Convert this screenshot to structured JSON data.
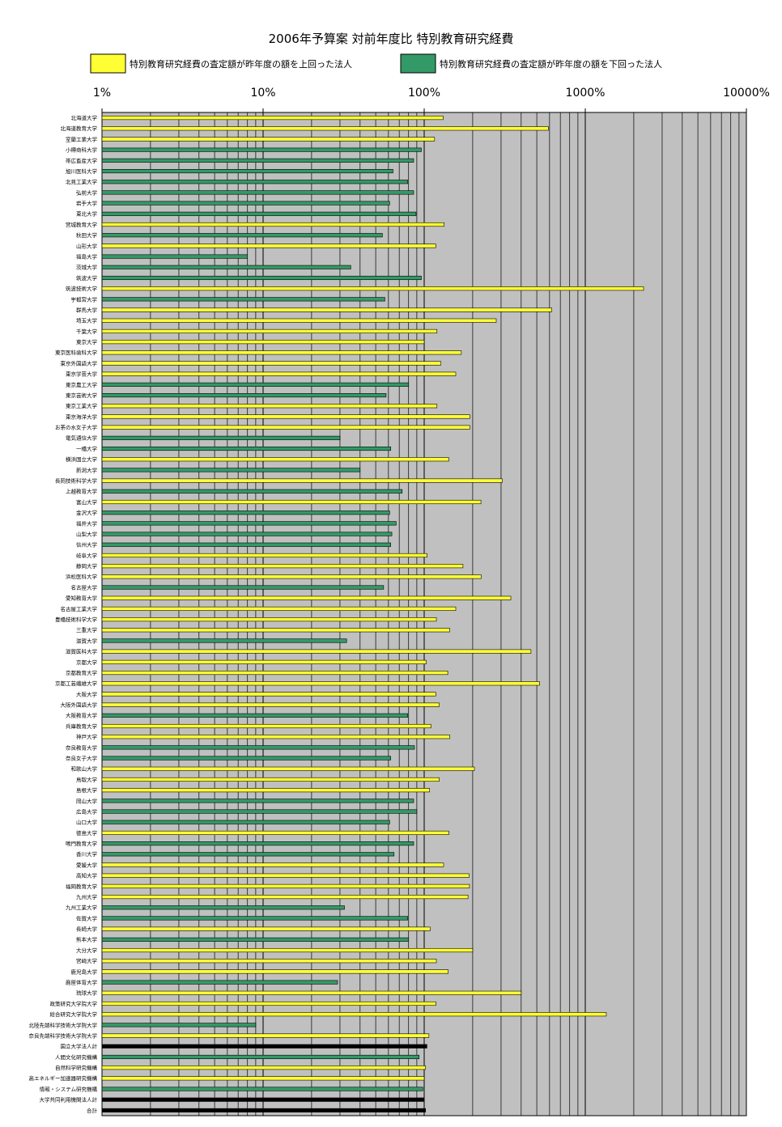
{
  "chart_data": {
    "type": "bar",
    "orientation": "horizontal",
    "title": "2006年予算案 対前年度比 特別教育研究経費",
    "xscale": "log",
    "xlim": [
      1,
      10000
    ],
    "x_ticks": [
      "1%",
      "10%",
      "100%",
      "1000%",
      "10000%"
    ],
    "grid": true,
    "legend_position": "top",
    "series": [
      {
        "name": "特別教育研究経費の査定額が昨年度の額を上回った法人",
        "color": "#ffff33"
      },
      {
        "name": "特別教育研究経費の査定額が昨年度の額を下回った法人",
        "color": "#339966"
      }
    ],
    "bars": [
      {
        "label": "北海道大学",
        "value": 131,
        "group": "up"
      },
      {
        "label": "北海道教育大学",
        "value": 590,
        "group": "up"
      },
      {
        "label": "室蘭工業大学",
        "value": 116,
        "group": "up"
      },
      {
        "label": "小樽商科大学",
        "value": 96,
        "group": "down"
      },
      {
        "label": "帯広畜産大学",
        "value": 86,
        "group": "down"
      },
      {
        "label": "旭川医科大学",
        "value": 64,
        "group": "down"
      },
      {
        "label": "北見工業大学",
        "value": 79,
        "group": "down"
      },
      {
        "label": "弘前大学",
        "value": 86,
        "group": "down"
      },
      {
        "label": "岩手大学",
        "value": 61,
        "group": "down"
      },
      {
        "label": "東北大学",
        "value": 89,
        "group": "down"
      },
      {
        "label": "宮城教育大学",
        "value": 133,
        "group": "up"
      },
      {
        "label": "秋田大学",
        "value": 55,
        "group": "down"
      },
      {
        "label": "山形大学",
        "value": 118,
        "group": "up"
      },
      {
        "label": "福島大学",
        "value": 8,
        "group": "down"
      },
      {
        "label": "茨城大学",
        "value": 35,
        "group": "down"
      },
      {
        "label": "筑波大学",
        "value": 96,
        "group": "down"
      },
      {
        "label": "筑波技術大学",
        "value": 2300,
        "group": "up"
      },
      {
        "label": "宇都宮大学",
        "value": 57,
        "group": "down"
      },
      {
        "label": "群馬大学",
        "value": 620,
        "group": "up"
      },
      {
        "label": "埼玉大学",
        "value": 280,
        "group": "up"
      },
      {
        "label": "千葉大学",
        "value": 120,
        "group": "up"
      },
      {
        "label": "東京大学",
        "value": 100,
        "group": "up"
      },
      {
        "label": "東京医科歯科大学",
        "value": 170,
        "group": "up"
      },
      {
        "label": "東京外国語大学",
        "value": 127,
        "group": "up"
      },
      {
        "label": "東京学芸大学",
        "value": 157,
        "group": "up"
      },
      {
        "label": "東京農工大学",
        "value": 80,
        "group": "down"
      },
      {
        "label": "東京芸術大学",
        "value": 58,
        "group": "down"
      },
      {
        "label": "東京工業大学",
        "value": 120,
        "group": "up"
      },
      {
        "label": "東京海洋大学",
        "value": 192,
        "group": "up"
      },
      {
        "label": "お茶の水女子大学",
        "value": 192,
        "group": "up"
      },
      {
        "label": "電気通信大学",
        "value": 30,
        "group": "down"
      },
      {
        "label": "一橋大学",
        "value": 62,
        "group": "down"
      },
      {
        "label": "横浜国立大学",
        "value": 142,
        "group": "up"
      },
      {
        "label": "新潟大学",
        "value": 40,
        "group": "down"
      },
      {
        "label": "長岡技術科学大学",
        "value": 305,
        "group": "up"
      },
      {
        "label": "上越教育大学",
        "value": 73,
        "group": "down"
      },
      {
        "label": "富山大学",
        "value": 225,
        "group": "up"
      },
      {
        "label": "金沢大学",
        "value": 61,
        "group": "down"
      },
      {
        "label": "福井大学",
        "value": 67,
        "group": "down"
      },
      {
        "label": "山梨大学",
        "value": 63,
        "group": "down"
      },
      {
        "label": "信州大学",
        "value": 62,
        "group": "down"
      },
      {
        "label": "岐阜大学",
        "value": 104,
        "group": "up"
      },
      {
        "label": "静岡大学",
        "value": 174,
        "group": "up"
      },
      {
        "label": "浜松医科大学",
        "value": 226,
        "group": "up"
      },
      {
        "label": "名古屋大学",
        "value": 56,
        "group": "down"
      },
      {
        "label": "愛知教育大学",
        "value": 345,
        "group": "up"
      },
      {
        "label": "名古屋工業大学",
        "value": 157,
        "group": "up"
      },
      {
        "label": "豊橋技術科学大学",
        "value": 119,
        "group": "up"
      },
      {
        "label": "三重大学",
        "value": 144,
        "group": "up"
      },
      {
        "label": "滋賀大学",
        "value": 33,
        "group": "down"
      },
      {
        "label": "滋賀医科大学",
        "value": 460,
        "group": "up"
      },
      {
        "label": "京都大学",
        "value": 103,
        "group": "up"
      },
      {
        "label": "京都教育大学",
        "value": 140,
        "group": "up"
      },
      {
        "label": "京都工芸繊維大学",
        "value": 520,
        "group": "up"
      },
      {
        "label": "大阪大学",
        "value": 118,
        "group": "up"
      },
      {
        "label": "大阪外国語大学",
        "value": 124,
        "group": "up"
      },
      {
        "label": "大阪教育大学",
        "value": 79,
        "group": "down"
      },
      {
        "label": "兵庫教育大学",
        "value": 110,
        "group": "up"
      },
      {
        "label": "神戸大学",
        "value": 144,
        "group": "up"
      },
      {
        "label": "奈良教育大学",
        "value": 87,
        "group": "down"
      },
      {
        "label": "奈良女子大学",
        "value": 62,
        "group": "down"
      },
      {
        "label": "和歌山大学",
        "value": 205,
        "group": "up"
      },
      {
        "label": "鳥取大学",
        "value": 124,
        "group": "up"
      },
      {
        "label": "島根大学",
        "value": 108,
        "group": "up"
      },
      {
        "label": "岡山大学",
        "value": 86,
        "group": "down"
      },
      {
        "label": "広島大学",
        "value": 90,
        "group": "down"
      },
      {
        "label": "山口大学",
        "value": 61,
        "group": "down"
      },
      {
        "label": "徳島大学",
        "value": 142,
        "group": "up"
      },
      {
        "label": "鳴門教育大学",
        "value": 86,
        "group": "down"
      },
      {
        "label": "香川大学",
        "value": 65,
        "group": "down"
      },
      {
        "label": "愛媛大学",
        "value": 132,
        "group": "up"
      },
      {
        "label": "高知大学",
        "value": 190,
        "group": "up"
      },
      {
        "label": "福岡教育大学",
        "value": 191,
        "group": "up"
      },
      {
        "label": "九州大学",
        "value": 187,
        "group": "up"
      },
      {
        "label": "九州工業大学",
        "value": 32,
        "group": "down"
      },
      {
        "label": "佐賀大学",
        "value": 79,
        "group": "down"
      },
      {
        "label": "長崎大学",
        "value": 109,
        "group": "up"
      },
      {
        "label": "熊本大学",
        "value": 80,
        "group": "down"
      },
      {
        "label": "大分大学",
        "value": 200,
        "group": "up"
      },
      {
        "label": "宮崎大学",
        "value": 119,
        "group": "up"
      },
      {
        "label": "鹿児島大学",
        "value": 141,
        "group": "up"
      },
      {
        "label": "鹿屋体育大学",
        "value": 29,
        "group": "down"
      },
      {
        "label": "琉球大学",
        "value": 400,
        "group": "up"
      },
      {
        "label": "政策研究大学院大学",
        "value": 118,
        "group": "up"
      },
      {
        "label": "総合研究大学院大学",
        "value": 1350,
        "group": "up"
      },
      {
        "label": "北陸先端科学技術大学院大学",
        "value": 9,
        "group": "down"
      },
      {
        "label": "奈良先端科学技術大学院大学",
        "value": 107,
        "group": "up"
      },
      {
        "label": "国立大学法人計",
        "value": 104,
        "group": "total"
      },
      {
        "label": "人間文化研究機構",
        "value": 93,
        "group": "down"
      },
      {
        "label": "自然科学研究機構",
        "value": 102,
        "group": "up"
      },
      {
        "label": "高エネルギー加速器研究機構",
        "value": 100,
        "group": "up"
      },
      {
        "label": "情報・システム研究機構",
        "value": 98,
        "group": "down"
      },
      {
        "label": "大学共同利用機関法人計",
        "value": 100,
        "group": "total"
      },
      {
        "label": "合計",
        "value": 102,
        "group": "total"
      }
    ]
  },
  "colors": {
    "up": "#ffff33",
    "down": "#339966",
    "total": "#000000",
    "plot_bg": "#c0c0c0",
    "grid": "#000000"
  }
}
